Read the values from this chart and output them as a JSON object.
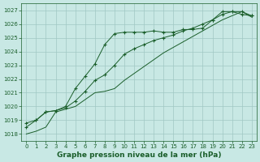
{
  "title": "Graphe pression niveau de la mer (hPa)",
  "bg_color": "#c8e8e4",
  "grid_color": "#a0c8c4",
  "line_color": "#1a5e2a",
  "marker_color": "#1a5e2a",
  "ylim": [
    1017.5,
    1027.5
  ],
  "xlim": [
    -0.5,
    23.5
  ],
  "yticks": [
    1018,
    1019,
    1020,
    1021,
    1022,
    1023,
    1024,
    1025,
    1026,
    1027
  ],
  "xticks": [
    0,
    1,
    2,
    3,
    4,
    5,
    6,
    7,
    8,
    9,
    10,
    11,
    12,
    13,
    14,
    15,
    16,
    17,
    18,
    19,
    20,
    21,
    22,
    23
  ],
  "line1_x": [
    0,
    1,
    2,
    3,
    4,
    5,
    6,
    7,
    8,
    9,
    10,
    11,
    12,
    13,
    14,
    15,
    16,
    17,
    18,
    19,
    20,
    21,
    22,
    23
  ],
  "line1_y": [
    1018.8,
    1019.0,
    1019.6,
    1019.7,
    1020.0,
    1021.3,
    1022.2,
    1023.1,
    1024.5,
    1025.3,
    1025.4,
    1025.4,
    1025.4,
    1025.5,
    1025.4,
    1025.4,
    1025.6,
    1025.6,
    1025.7,
    1026.3,
    1026.9,
    1026.9,
    1026.7,
    1026.6
  ],
  "line2_x": [
    0,
    1,
    2,
    3,
    4,
    5,
    6,
    7,
    8,
    9,
    10,
    11,
    12,
    13,
    14,
    15,
    16,
    17,
    18,
    19,
    20,
    21,
    22,
    23
  ],
  "line2_y": [
    1018.5,
    1019.0,
    1019.6,
    1019.7,
    1019.9,
    1020.4,
    1021.1,
    1021.9,
    1022.3,
    1023.0,
    1023.8,
    1024.2,
    1024.5,
    1024.8,
    1025.0,
    1025.2,
    1025.5,
    1025.7,
    1026.0,
    1026.3,
    1026.7,
    1026.9,
    1026.9,
    1026.6
  ],
  "line3_x": [
    0,
    1,
    2,
    3,
    4,
    5,
    6,
    7,
    8,
    9,
    10,
    11,
    12,
    13,
    14,
    15,
    16,
    17,
    18,
    19,
    20,
    21,
    22,
    23
  ],
  "line3_y": [
    1018.0,
    1018.2,
    1018.5,
    1019.6,
    1019.8,
    1020.0,
    1020.5,
    1021.0,
    1021.1,
    1021.3,
    1021.9,
    1022.4,
    1022.9,
    1023.4,
    1023.9,
    1024.3,
    1024.7,
    1025.1,
    1025.5,
    1025.9,
    1026.3,
    1026.6,
    1026.9,
    1026.5
  ],
  "title_fontsize": 6.5,
  "tick_fontsize": 5.0
}
